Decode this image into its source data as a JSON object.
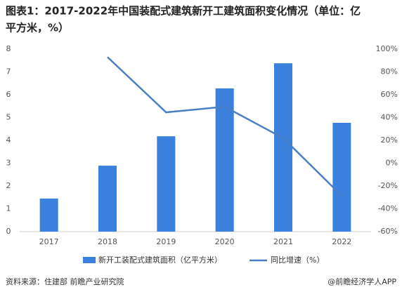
{
  "chart_data": {
    "type": "bar-line",
    "title": "图表1：2017-2022年中国装配式建筑新开工建筑面积变化情况（单位：亿平方米，%）",
    "categories": [
      "2017",
      "2018",
      "2019",
      "2020",
      "2021",
      "2022"
    ],
    "series": [
      {
        "name": "新开工装配式建筑面积（亿平方米）",
        "color": "#3a80dc",
        "type": "bar",
        "values": [
          1.45,
          2.89,
          4.18,
          6.28,
          7.38,
          4.77
        ]
      },
      {
        "name": "同比增速（%）",
        "color": "#4a7fc6",
        "type": "line",
        "axis": "y2",
        "values": [
          null,
          93,
          44.6,
          49.5,
          22,
          -28.6
        ]
      }
    ],
    "ylim": [
      0,
      8
    ],
    "yticks": [
      0,
      1,
      2,
      3,
      4,
      5,
      6,
      7,
      8
    ],
    "y2lim": [
      -60,
      100
    ],
    "y2ticks": [
      {
        "value": -60,
        "label": "-60%"
      },
      {
        "value": -40,
        "label": "-40%"
      },
      {
        "value": -20,
        "label": "-20%"
      },
      {
        "value": 0,
        "label": "0%"
      },
      {
        "value": 20,
        "label": "20%"
      },
      {
        "value": 40,
        "label": "40%"
      },
      {
        "value": 60,
        "label": "60%"
      },
      {
        "value": 80,
        "label": "80%"
      },
      {
        "value": 100,
        "label": "100%"
      }
    ],
    "grid": false,
    "source": "资料来源：住建部 前瞻产业研究院",
    "credit": "@前瞻经济学人APP"
  }
}
